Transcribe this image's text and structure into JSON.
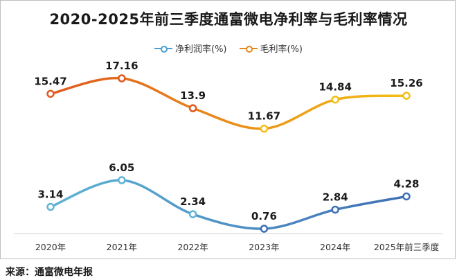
{
  "title": "2020-2025年前三季度通富微电净利率与毛利率情况",
  "source": "来源：通富微电年报",
  "chart_data": {
    "type": "line",
    "categories": [
      "2020年",
      "2021年",
      "2022年",
      "2023年",
      "2024年",
      "2025年前三季度"
    ],
    "series": [
      {
        "name": "净利润率(%)",
        "values": [
          3.14,
          6.05,
          2.34,
          0.76,
          2.84,
          4.28
        ],
        "color_start": "#5fb4d6",
        "color_end": "#3f6fb4",
        "value_labels": [
          "3.14",
          "6.05",
          "2.34",
          "0.76",
          "2.84",
          "4.28"
        ]
      },
      {
        "name": "毛利率(%)",
        "values": [
          15.47,
          17.16,
          13.9,
          11.67,
          14.84,
          15.26
        ],
        "color_start": "#e0591e",
        "color_end": "#f2bf14",
        "value_labels": [
          "15.47",
          "17.16",
          "13.9",
          "11.67",
          "14.84",
          "15.26"
        ]
      }
    ],
    "grid": false,
    "legend_position": "top-center"
  }
}
